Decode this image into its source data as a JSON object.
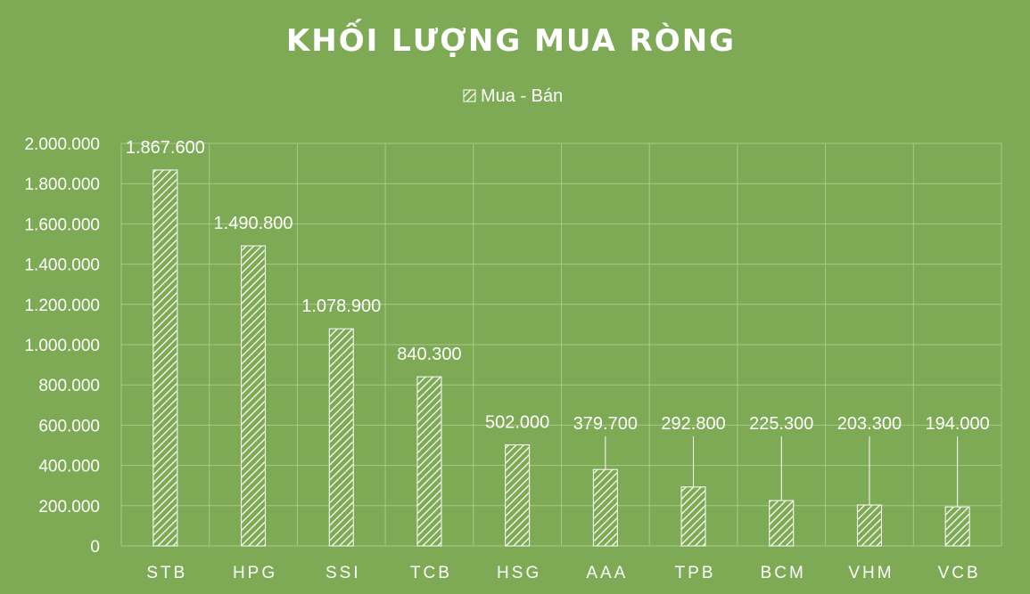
{
  "chart_data": {
    "type": "bar",
    "title": "KHỐI LƯỢNG MUA RÒNG",
    "categories": [
      "STB",
      "HPG",
      "SSI",
      "TCB",
      "HSG",
      "AAA",
      "TPB",
      "BCM",
      "VHM",
      "VCB"
    ],
    "series": [
      {
        "name": "Mua - Bán",
        "values": [
          1867600,
          1490800,
          1078900,
          840300,
          502000,
          379700,
          292800,
          225300,
          203300,
          194000
        ],
        "labels": [
          "1.867.600",
          "1.490.800",
          "1.078.900",
          "840.300",
          "502.000",
          "379.700",
          "292.800",
          "225.300",
          "203.300",
          "194.000"
        ]
      }
    ],
    "ylim": [
      0,
      2000000
    ],
    "yticks": [
      0,
      200000,
      400000,
      600000,
      800000,
      1000000,
      1200000,
      1400000,
      1600000,
      1800000,
      2000000
    ],
    "ytick_labels": [
      "0",
      "200.000",
      "400.000",
      "600.000",
      "800.000",
      "1.000.000",
      "1.200.000",
      "1.400.000",
      "1.600.000",
      "1.800.000",
      "2.000.000"
    ],
    "grid": true,
    "legend_position": "top",
    "colors": {
      "background": "#7eaa55",
      "bar": "#ffffff",
      "text": "#ffffff",
      "grid": "#a9c98a"
    }
  }
}
